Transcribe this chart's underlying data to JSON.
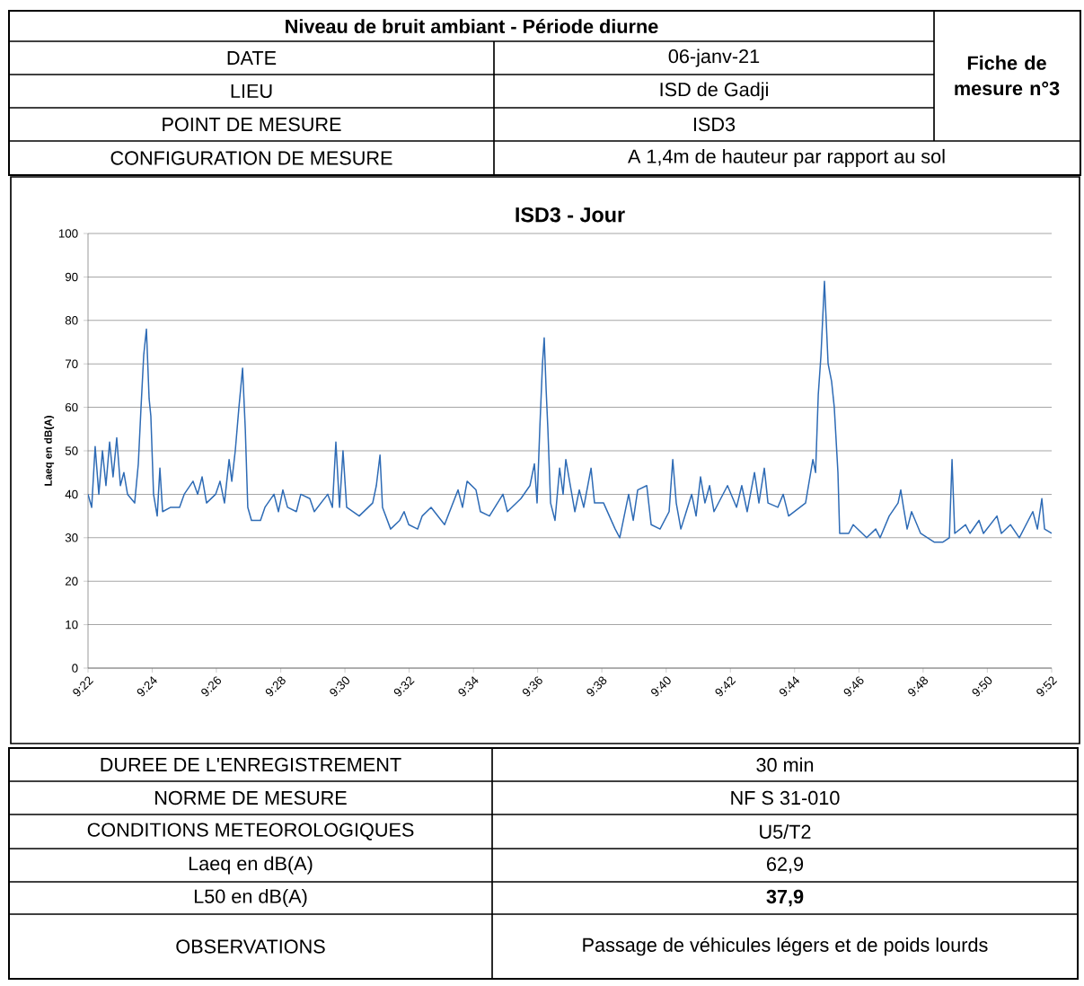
{
  "chart_data": {
    "type": "line",
    "title": "ISD3 - Jour",
    "ylabel": "Laeq en dB(A)",
    "annotations": [
      "Niveau de bruit ambiant - Période diurne",
      "DATE",
      "06-janv-21",
      "LIEU",
      "ISD de Gadji",
      "POINT DE MESURE",
      "ISD3",
      "CONFIGURATION DE MESURE",
      "A 1,4m de hauteur par rapport au sol",
      "Fiche de mesure n°3",
      "DUREE DE L'ENREGISTREMENT",
      "30 min",
      "NORME DE MESURE",
      "NF S 31-010",
      "CONDITIONS METEOROLOGIQUES",
      "U5/T2",
      "Laeq en dB(A)",
      "62,9",
      "L50 en dB(A)",
      "**37,9**",
      "OBSERVATIONS",
      "Passage de véhicules légers et de poids lourds"
    ],
    "x": [
      9.3667,
      9.3686,
      9.3704,
      9.3723,
      9.3742,
      9.376,
      9.3779,
      9.3797,
      9.3816,
      9.3835,
      9.3853,
      9.3872,
      9.3909,
      9.3928,
      9.3942,
      9.3956,
      9.397,
      9.3984,
      9.3993,
      9.4007,
      9.4026,
      9.404,
      9.4054,
      9.4096,
      9.4142,
      9.4166,
      9.4212,
      9.4236,
      9.4259,
      9.4282,
      9.4329,
      9.4352,
      9.4375,
      9.4399,
      9.4413,
      9.4431,
      9.445,
      9.4469,
      9.4483,
      9.4496,
      9.4515,
      9.4562,
      9.4585,
      9.4632,
      9.4655,
      9.4678,
      9.4702,
      9.4748,
      9.4771,
      9.4818,
      9.4841,
      9.4911,
      9.4935,
      9.4953,
      9.4972,
      9.499,
      9.5009,
      9.5074,
      9.5144,
      9.5163,
      9.5182,
      9.5195,
      9.5237,
      9.5284,
      9.5307,
      9.5331,
      9.5377,
      9.5401,
      9.5447,
      9.5517,
      9.5587,
      9.561,
      9.5634,
      9.568,
      9.5703,
      9.575,
      9.582,
      9.5843,
      9.5913,
      9.596,
      9.5983,
      9.5997,
      9.6011,
      9.6025,
      9.6034,
      9.6044,
      9.6053,
      9.6067,
      9.609,
      9.6114,
      9.6132,
      9.6146,
      9.6193,
      9.6216,
      9.6239,
      9.6277,
      9.6295,
      9.6342,
      9.6402,
      9.6426,
      9.6472,
      9.6496,
      9.6519,
      9.6566,
      9.6589,
      9.6635,
      9.6682,
      9.6701,
      9.6719,
      9.6743,
      9.6799,
      9.6822,
      9.6845,
      9.6868,
      9.6892,
      9.6915,
      9.6985,
      9.7032,
      9.7059,
      9.7087,
      9.7125,
      9.7148,
      9.7176,
      9.7195,
      9.7246,
      9.7274,
      9.7302,
      9.739,
      9.7428,
      9.7442,
      9.7456,
      9.747,
      9.7488,
      9.7507,
      9.7525,
      9.7539,
      9.7558,
      9.7567,
      9.7614,
      9.7637,
      9.7707,
      9.7754,
      9.7777,
      9.7824,
      9.787,
      9.7884,
      9.7898,
      9.7917,
      9.794,
      9.7987,
      9.8057,
      9.8103,
      9.8136,
      9.815,
      9.8164,
      9.822,
      9.8243,
      9.829,
      9.8313,
      9.8383,
      9.8406,
      9.8453,
      9.8499,
      9.8569,
      9.8593,
      9.8616,
      9.863,
      9.8667
    ],
    "series": [
      {
        "color": "#2e6bb5",
        "values": [
          40,
          37,
          51,
          40,
          50,
          42,
          52,
          44,
          53,
          42,
          45,
          40,
          38,
          47,
          60,
          72,
          78,
          62,
          58,
          40,
          35,
          46,
          36,
          37,
          37,
          40,
          43,
          40,
          44,
          38,
          40,
          43,
          38,
          48,
          43,
          50,
          60,
          69,
          55,
          37,
          34,
          34,
          37,
          40,
          36,
          41,
          37,
          36,
          40,
          39,
          36,
          40,
          37,
          52,
          37,
          50,
          37,
          35,
          38,
          42,
          49,
          37,
          32,
          34,
          36,
          33,
          32,
          35,
          37,
          33,
          41,
          37,
          43,
          41,
          36,
          35,
          40,
          36,
          39,
          42,
          47,
          38,
          55,
          70,
          76,
          64,
          55,
          38,
          34,
          46,
          40,
          48,
          36,
          41,
          37,
          46,
          38,
          38,
          32,
          30,
          40,
          34,
          41,
          42,
          33,
          32,
          36,
          48,
          38,
          32,
          40,
          35,
          44,
          38,
          42,
          36,
          42,
          37,
          42,
          36,
          45,
          38,
          46,
          38,
          37,
          40,
          35,
          38,
          48,
          45,
          63,
          72,
          89,
          70,
          66,
          60,
          45,
          31,
          31,
          33,
          30,
          32,
          30,
          35,
          38,
          41,
          37,
          32,
          36,
          31,
          29,
          29,
          30,
          48,
          31,
          33,
          31,
          34,
          31,
          35,
          31,
          33,
          30,
          36,
          32,
          39,
          32,
          31
        ]
      }
    ],
    "xlim": [
      9.3667,
      9.8667
    ],
    "ylim": [
      0,
      100
    ],
    "xticks": [
      {
        "value": 9.3667,
        "label": "9:22"
      },
      {
        "value": 9.4,
        "label": "9:24"
      },
      {
        "value": 9.4333,
        "label": "9:26"
      },
      {
        "value": 9.4667,
        "label": "9:28"
      },
      {
        "value": 9.5,
        "label": "9:30"
      },
      {
        "value": 9.5333,
        "label": "9:32"
      },
      {
        "value": 9.5667,
        "label": "9:34"
      },
      {
        "value": 9.6,
        "label": "9:36"
      },
      {
        "value": 9.6333,
        "label": "9:38"
      },
      {
        "value": 9.6667,
        "label": "9:40"
      },
      {
        "value": 9.7,
        "label": "9:42"
      },
      {
        "value": 9.7333,
        "label": "9:44"
      },
      {
        "value": 9.7667,
        "label": "9:46"
      },
      {
        "value": 9.8,
        "label": "9:48"
      },
      {
        "value": 9.8333,
        "label": "9:50"
      },
      {
        "value": 9.8667,
        "label": "9:52"
      }
    ],
    "yticks": [
      0,
      10,
      20,
      30,
      40,
      50,
      60,
      70,
      80,
      90,
      100
    ],
    "grid": "y"
  }
}
